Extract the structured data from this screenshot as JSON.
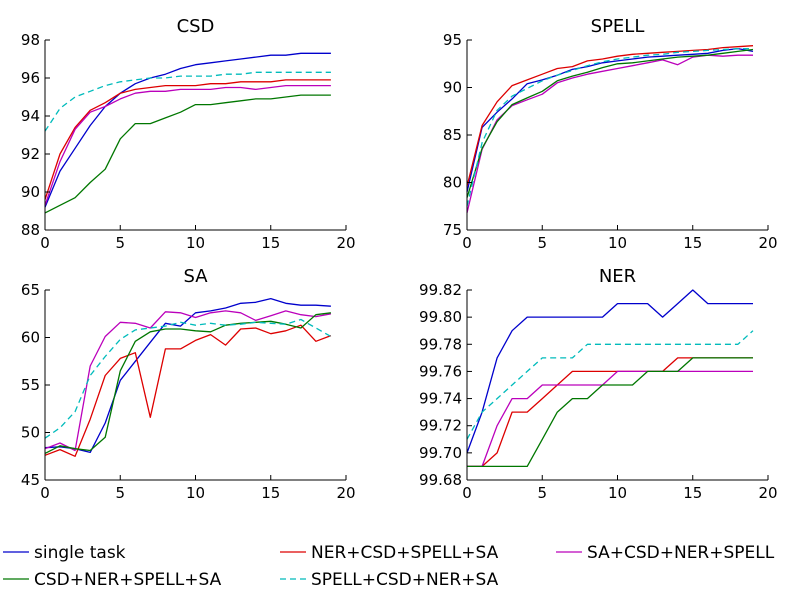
{
  "legend": {
    "placement": "bottom",
    "items": [
      {
        "name": "single task",
        "color": "#0000cc",
        "dash": "solid"
      },
      {
        "name": "NER+CSD+SPELL+SA",
        "color": "#dd0000",
        "dash": "solid"
      },
      {
        "name": "SA+CSD+NER+SPELL",
        "color": "#bb00bb",
        "dash": "solid"
      },
      {
        "name": "CSD+NER+SPELL+SA",
        "color": "#007700",
        "dash": "solid"
      },
      {
        "name": "SPELL+CSD+NER+SA",
        "color": "#00bbbb",
        "dash": "dashed"
      }
    ]
  },
  "chart_data": [
    {
      "type": "line",
      "title": "CSD",
      "x": [
        0,
        1,
        2,
        3,
        4,
        5,
        6,
        7,
        8,
        9,
        10,
        11,
        12,
        13,
        14,
        15,
        16,
        17,
        18,
        19
      ],
      "xlim": [
        0,
        20
      ],
      "xticks": [
        0,
        5,
        10,
        15,
        20
      ],
      "ylim": [
        88,
        98
      ],
      "yticks": [
        88,
        90,
        92,
        94,
        96,
        98
      ],
      "ytick_labels": [
        "88",
        "90",
        "92",
        "94",
        "96",
        "98"
      ],
      "grid": false,
      "series": [
        {
          "name": "single task",
          "values": [
            89.2,
            91.1,
            92.3,
            93.5,
            94.5,
            95.2,
            95.7,
            96.0,
            96.2,
            96.5,
            96.7,
            96.8,
            96.9,
            97.0,
            97.1,
            97.2,
            97.2,
            97.3,
            97.3,
            97.3
          ]
        },
        {
          "name": "NER+CSD+SPELL+SA",
          "values": [
            89.6,
            92.0,
            93.4,
            94.3,
            94.7,
            95.2,
            95.4,
            95.5,
            95.6,
            95.6,
            95.6,
            95.7,
            95.7,
            95.8,
            95.8,
            95.8,
            95.9,
            95.9,
            95.9,
            95.9
          ]
        },
        {
          "name": "SA+CSD+NER+SPELL",
          "values": [
            89.3,
            91.6,
            93.3,
            94.2,
            94.5,
            94.9,
            95.2,
            95.3,
            95.3,
            95.4,
            95.4,
            95.4,
            95.5,
            95.5,
            95.4,
            95.5,
            95.6,
            95.6,
            95.6,
            95.6
          ]
        },
        {
          "name": "CSD+NER+SPELL+SA",
          "values": [
            88.9,
            89.3,
            89.7,
            90.5,
            91.2,
            92.8,
            93.6,
            93.6,
            93.9,
            94.2,
            94.6,
            94.6,
            94.7,
            94.8,
            94.9,
            94.9,
            95.0,
            95.1,
            95.1,
            95.1
          ]
        },
        {
          "name": "SPELL+CSD+NER+SA",
          "values": [
            93.2,
            94.4,
            95.0,
            95.3,
            95.6,
            95.8,
            95.9,
            96.0,
            96.0,
            96.1,
            96.1,
            96.1,
            96.2,
            96.2,
            96.3,
            96.3,
            96.3,
            96.3,
            96.3,
            96.3
          ]
        }
      ]
    },
    {
      "type": "line",
      "title": "SPELL",
      "x": [
        0,
        1,
        2,
        3,
        4,
        5,
        6,
        7,
        8,
        9,
        10,
        11,
        12,
        13,
        14,
        15,
        16,
        17,
        18,
        19
      ],
      "xlim": [
        0,
        20
      ],
      "xticks": [
        0,
        5,
        10,
        15,
        20
      ],
      "ylim": [
        75,
        95
      ],
      "yticks": [
        75,
        80,
        85,
        90,
        95
      ],
      "ytick_labels": [
        "75",
        "80",
        "85",
        "90",
        "95"
      ],
      "grid": false,
      "series": [
        {
          "name": "single task",
          "values": [
            79.0,
            85.8,
            87.4,
            88.8,
            90.4,
            90.8,
            91.3,
            91.9,
            92.2,
            92.6,
            92.8,
            93.0,
            93.2,
            93.3,
            93.4,
            93.5,
            93.6,
            93.9,
            94.1,
            93.8
          ]
        },
        {
          "name": "NER+CSD+SPELL+SA",
          "values": [
            79.6,
            86.0,
            88.5,
            90.2,
            90.8,
            91.4,
            92.0,
            92.2,
            92.8,
            93.0,
            93.3,
            93.5,
            93.6,
            93.7,
            93.8,
            93.9,
            94.0,
            94.2,
            94.3,
            94.4
          ]
        },
        {
          "name": "SA+CSD+NER+SPELL",
          "values": [
            76.8,
            83.5,
            86.6,
            88.1,
            88.7,
            89.3,
            90.5,
            91.0,
            91.4,
            91.7,
            92.0,
            92.3,
            92.6,
            92.9,
            92.4,
            93.2,
            93.4,
            93.3,
            93.4,
            93.4
          ]
        },
        {
          "name": "CSD+NER+SPELL+SA",
          "values": [
            78.4,
            83.6,
            86.4,
            88.2,
            88.9,
            89.6,
            90.7,
            91.2,
            91.6,
            92.1,
            92.5,
            92.6,
            92.8,
            93.0,
            93.2,
            93.3,
            93.4,
            93.6,
            93.8,
            94.0
          ]
        },
        {
          "name": "SPELL+CSD+NER+SA",
          "values": [
            77.5,
            84.2,
            87.6,
            89.1,
            89.9,
            90.7,
            91.3,
            91.8,
            92.3,
            92.7,
            93.0,
            93.2,
            93.4,
            93.5,
            93.7,
            93.8,
            93.9,
            94.0,
            94.1,
            94.1
          ]
        }
      ]
    },
    {
      "type": "line",
      "title": "SA",
      "x": [
        0,
        1,
        2,
        3,
        4,
        5,
        6,
        7,
        8,
        9,
        10,
        11,
        12,
        13,
        14,
        15,
        16,
        17,
        18,
        19
      ],
      "xlim": [
        0,
        20
      ],
      "xticks": [
        0,
        5,
        10,
        15,
        20
      ],
      "ylim": [
        45,
        65
      ],
      "yticks": [
        45,
        50,
        55,
        60,
        65
      ],
      "ytick_labels": [
        "45",
        "50",
        "55",
        "60",
        "65"
      ],
      "grid": false,
      "series": [
        {
          "name": "single task",
          "values": [
            48.4,
            48.5,
            48.3,
            47.9,
            51.0,
            55.5,
            57.5,
            59.5,
            61.5,
            61.2,
            62.6,
            62.8,
            63.1,
            63.6,
            63.7,
            64.1,
            63.6,
            63.4,
            63.4,
            63.3
          ]
        },
        {
          "name": "NER+CSD+SPELL+SA",
          "values": [
            47.6,
            48.2,
            47.5,
            51.4,
            56.0,
            57.8,
            58.4,
            51.6,
            58.8,
            58.8,
            59.7,
            60.3,
            59.2,
            60.9,
            61.0,
            60.4,
            60.7,
            61.3,
            59.6,
            60.2
          ]
        },
        {
          "name": "SA+CSD+NER+SPELL",
          "values": [
            48.3,
            48.9,
            48.1,
            57.0,
            60.1,
            61.6,
            61.5,
            61.0,
            62.7,
            62.6,
            62.1,
            62.6,
            62.8,
            62.6,
            61.8,
            62.3,
            62.8,
            62.4,
            62.2,
            62.5
          ]
        },
        {
          "name": "CSD+NER+SPELL+SA",
          "values": [
            47.8,
            48.6,
            48.3,
            48.1,
            49.5,
            56.5,
            59.6,
            60.6,
            60.9,
            60.9,
            60.7,
            60.6,
            61.3,
            61.5,
            61.6,
            61.7,
            61.4,
            61.0,
            62.4,
            62.6
          ]
        },
        {
          "name": "SPELL+CSD+NER+SA",
          "values": [
            49.4,
            50.5,
            52.2,
            56.0,
            58.0,
            59.8,
            60.8,
            61.0,
            61.2,
            61.6,
            61.3,
            61.5,
            61.3,
            61.4,
            61.6,
            61.5,
            61.4,
            61.9,
            61.0,
            60.1
          ]
        }
      ]
    },
    {
      "type": "line",
      "title": "NER",
      "x": [
        0,
        1,
        2,
        3,
        4,
        5,
        6,
        7,
        8,
        9,
        10,
        11,
        12,
        13,
        14,
        15,
        16,
        17,
        18,
        19
      ],
      "xlim": [
        0,
        20
      ],
      "xticks": [
        0,
        5,
        10,
        15,
        20
      ],
      "ylim": [
        99.68,
        99.82
      ],
      "yticks": [
        99.68,
        99.7,
        99.72,
        99.74,
        99.76,
        99.78,
        99.8,
        99.82
      ],
      "ytick_labels": [
        "99.68",
        "99.70",
        "99.72",
        "99.74",
        "99.76",
        "99.78",
        "99.80",
        "99.82"
      ],
      "grid": false,
      "series": [
        {
          "name": "single task",
          "values": [
            99.7,
            99.73,
            99.77,
            99.79,
            99.8,
            99.8,
            99.8,
            99.8,
            99.8,
            99.8,
            99.81,
            99.81,
            99.81,
            99.8,
            99.81,
            99.82,
            99.81,
            99.81,
            99.81,
            99.81
          ]
        },
        {
          "name": "NER+CSD+SPELL+SA",
          "values": [
            99.69,
            99.69,
            99.7,
            99.73,
            99.73,
            99.74,
            99.75,
            99.76,
            99.76,
            99.76,
            99.76,
            99.76,
            99.76,
            99.76,
            99.77,
            99.77,
            99.77,
            99.77,
            99.77,
            99.77
          ]
        },
        {
          "name": "SA+CSD+NER+SPELL",
          "values": [
            99.69,
            99.69,
            99.72,
            99.74,
            99.74,
            99.75,
            99.75,
            99.75,
            99.75,
            99.75,
            99.76,
            99.76,
            99.76,
            99.76,
            99.76,
            99.76,
            99.76,
            99.76,
            99.76,
            99.76
          ]
        },
        {
          "name": "CSD+NER+SPELL+SA",
          "values": [
            99.69,
            99.69,
            99.69,
            99.69,
            99.69,
            99.71,
            99.73,
            99.74,
            99.74,
            99.75,
            99.75,
            99.75,
            99.76,
            99.76,
            99.76,
            99.77,
            99.77,
            99.77,
            99.77,
            99.77
          ]
        },
        {
          "name": "SPELL+CSD+NER+SA",
          "values": [
            99.71,
            99.73,
            99.74,
            99.75,
            99.76,
            99.77,
            99.77,
            99.77,
            99.78,
            99.78,
            99.78,
            99.78,
            99.78,
            99.78,
            99.78,
            99.78,
            99.78,
            99.78,
            99.78,
            99.79
          ]
        }
      ]
    }
  ]
}
